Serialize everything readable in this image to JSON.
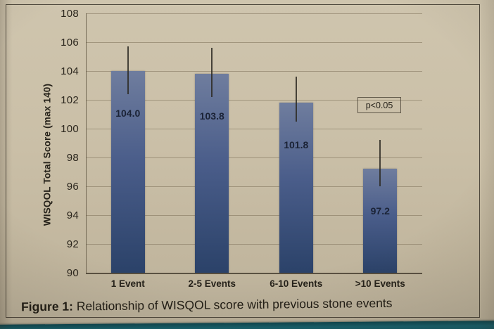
{
  "figure": {
    "caption_prefix": "Figure 1:",
    "caption_text": " Relationship of WISQOL score with previous stone events"
  },
  "chart_data": {
    "type": "bar",
    "title": "",
    "categories": [
      "1 Event",
      "2-5 Events",
      "6-10 Events",
      ">10 Events"
    ],
    "values": [
      104.0,
      103.8,
      101.8,
      97.2
    ],
    "value_labels": [
      "104.0",
      "103.8",
      "101.8",
      "97.2"
    ],
    "error_bars": [
      {
        "hi": 105.7,
        "lo": 102.4
      },
      {
        "hi": 105.6,
        "lo": 102.2
      },
      {
        "hi": 103.6,
        "lo": 100.5
      },
      {
        "hi": 99.2,
        "lo": 96.0
      }
    ],
    "xlabel": "",
    "ylabel": "WISQOL Total Score (max 140)",
    "ylim": [
      90,
      108
    ],
    "yticks": [
      90,
      92,
      94,
      96,
      98,
      100,
      102,
      104,
      106,
      108
    ],
    "grid": true,
    "legend": null,
    "annotation": "p<0.05"
  },
  "colors": {
    "bar_top": "#6f7d9e",
    "bar_bottom": "#2b4269",
    "paper": "#cabfa7",
    "gridline": "#7e715a",
    "frame": "#3a342a",
    "teal_surface": "#17616d",
    "text": "#26221a"
  }
}
